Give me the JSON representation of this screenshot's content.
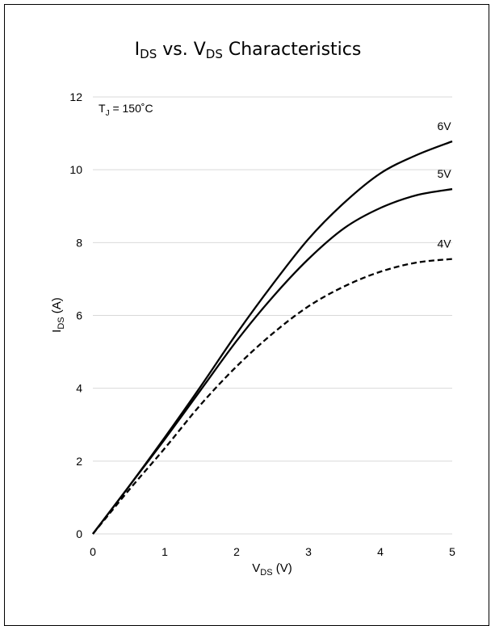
{
  "chart_data": {
    "type": "line",
    "title": {
      "main": "I",
      "sub1": "DS",
      "mid": " vs. V",
      "sub2": "DS",
      "tail": " Characteristics"
    },
    "xlabel": {
      "main": "V",
      "sub": "DS",
      "unit": " (V)"
    },
    "ylabel": {
      "main": "I",
      "sub": "DS",
      "unit": " (A)"
    },
    "annotation": {
      "main": "T",
      "sub": "J",
      "tail": " = 150˚C"
    },
    "xlim": [
      0,
      5
    ],
    "ylim": [
      0,
      12
    ],
    "xticks": [
      0,
      1,
      2,
      3,
      4,
      5
    ],
    "yticks": [
      0,
      2,
      4,
      6,
      8,
      10,
      12
    ],
    "grid": "horizontal",
    "line_color": "#000000",
    "grid_color": "#d9d9d9",
    "series": [
      {
        "name": "6V",
        "dash": "solid",
        "x": [
          0,
          0.5,
          1,
          1.5,
          2,
          2.5,
          3,
          3.5,
          4,
          4.5,
          5
        ],
        "y": [
          0,
          1.3,
          2.65,
          4.05,
          5.5,
          6.85,
          8.1,
          9.1,
          9.9,
          10.4,
          10.78
        ]
      },
      {
        "name": "5V",
        "dash": "solid",
        "x": [
          0,
          0.5,
          1,
          1.5,
          2,
          2.5,
          3,
          3.5,
          4,
          4.5,
          5
        ],
        "y": [
          0,
          1.3,
          2.6,
          3.95,
          5.3,
          6.5,
          7.55,
          8.4,
          8.95,
          9.3,
          9.47
        ]
      },
      {
        "name": "4V",
        "dash": "dashed",
        "x": [
          0,
          0.5,
          1,
          1.5,
          2,
          2.5,
          3,
          3.5,
          4,
          4.5,
          5
        ],
        "y": [
          0,
          1.2,
          2.35,
          3.55,
          4.6,
          5.5,
          6.25,
          6.8,
          7.2,
          7.45,
          7.55
        ]
      }
    ]
  }
}
